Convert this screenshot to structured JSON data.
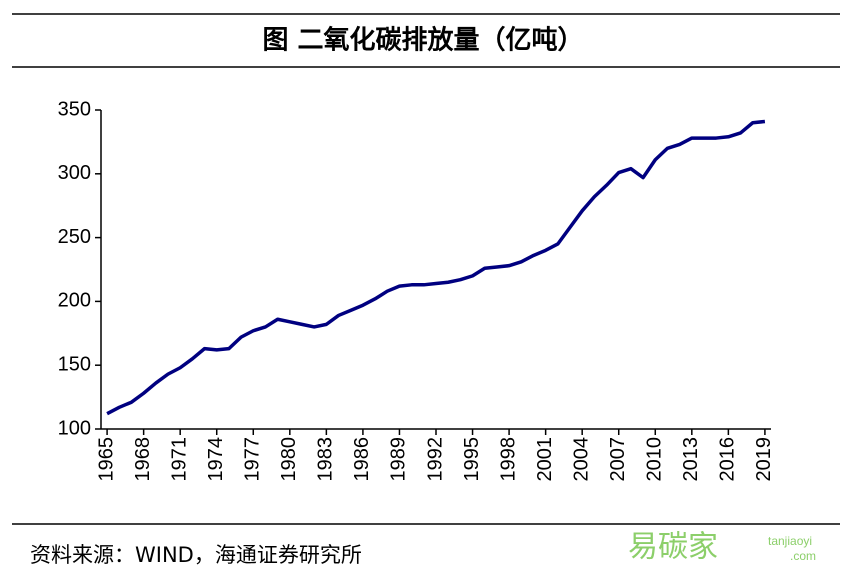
{
  "chart_data": {
    "type": "line",
    "title": "图  二氧化碳排放量（亿吨）",
    "source": "资料来源：WIND，海通证券研究所",
    "watermark": [
      "易碳家",
      "tanjiaoyi",
      ".com"
    ],
    "x": [
      1965,
      1966,
      1967,
      1968,
      1969,
      1970,
      1971,
      1972,
      1973,
      1974,
      1975,
      1976,
      1977,
      1978,
      1979,
      1980,
      1981,
      1982,
      1983,
      1984,
      1985,
      1986,
      1987,
      1988,
      1989,
      1990,
      1991,
      1992,
      1993,
      1994,
      1995,
      1996,
      1997,
      1998,
      1999,
      2000,
      2001,
      2002,
      2003,
      2004,
      2005,
      2006,
      2007,
      2008,
      2009,
      2010,
      2011,
      2012,
      2013,
      2014,
      2015,
      2016,
      2017,
      2018,
      2019
    ],
    "series": [
      {
        "name": "二氧化碳排放量",
        "color": "#000080",
        "values": [
          112,
          117,
          121,
          128,
          136,
          143,
          148,
          155,
          163,
          162,
          163,
          172,
          177,
          180,
          186,
          184,
          182,
          180,
          182,
          189,
          193,
          197,
          202,
          208,
          212,
          213,
          213,
          214,
          215,
          217,
          220,
          226,
          227,
          228,
          231,
          236,
          240,
          245,
          258,
          271,
          282,
          291,
          301,
          304,
          297,
          311,
          320,
          323,
          328,
          328,
          328,
          329,
          332,
          340,
          341
        ]
      }
    ],
    "xlim": [
      1964.5,
      2019.5
    ],
    "xticks": [
      1965,
      1968,
      1971,
      1974,
      1977,
      1980,
      1983,
      1986,
      1989,
      1992,
      1995,
      1998,
      2001,
      2004,
      2007,
      2010,
      2013,
      2016,
      2019
    ],
    "ylim": [
      100,
      350
    ],
    "yticks": [
      100,
      150,
      200,
      250,
      300,
      350
    ]
  }
}
